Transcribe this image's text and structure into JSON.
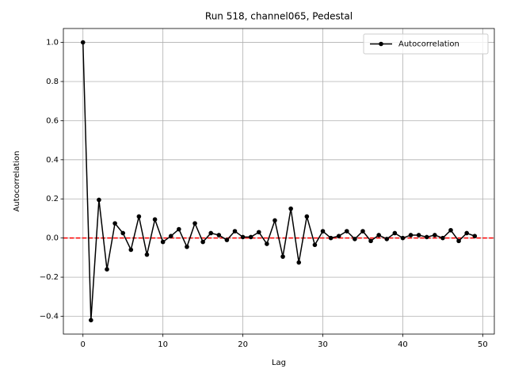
{
  "chart_data": {
    "type": "line",
    "title": "Run 518, channel065, Pedestal",
    "x_label": "Lag",
    "y_label": "Autocorrelation",
    "x": [
      0,
      1,
      2,
      3,
      4,
      5,
      6,
      7,
      8,
      9,
      10,
      11,
      12,
      13,
      14,
      15,
      16,
      17,
      18,
      19,
      20,
      21,
      22,
      23,
      24,
      25,
      26,
      27,
      28,
      29,
      30,
      31,
      32,
      33,
      34,
      35,
      36,
      37,
      38,
      39,
      40,
      41,
      42,
      43,
      44,
      45,
      46,
      47,
      48,
      49
    ],
    "series": [
      {
        "name": "Autocorrelation",
        "color": "#000000",
        "values": [
          1.0,
          -0.42,
          0.195,
          -0.16,
          0.075,
          0.025,
          -0.06,
          0.11,
          -0.085,
          0.095,
          -0.02,
          0.01,
          0.045,
          -0.045,
          0.075,
          -0.02,
          0.025,
          0.015,
          -0.01,
          0.035,
          0.005,
          0.005,
          0.03,
          -0.03,
          0.09,
          -0.095,
          0.15,
          -0.125,
          0.11,
          -0.035,
          0.035,
          0.0,
          0.01,
          0.035,
          -0.005,
          0.035,
          -0.015,
          0.015,
          -0.005,
          0.025,
          0.0,
          0.015,
          0.015,
          0.005,
          0.015,
          0.0,
          0.04,
          -0.015,
          0.025,
          0.01
        ]
      }
    ],
    "reference_line": {
      "value": 0,
      "color": "#ff0000"
    },
    "xlim": [
      -2.45,
      51.45
    ],
    "xticks": [
      0,
      10,
      20,
      30,
      40,
      50
    ],
    "ylim": [
      -0.491,
      1.071
    ],
    "yticks": [
      {
        "value": -0.4,
        "label": "−0.4"
      },
      {
        "value": -0.2,
        "label": "−0.2"
      },
      {
        "value": 0,
        "label": "0.0"
      },
      {
        "value": 0.2,
        "label": "0.2"
      },
      {
        "value": 0.4,
        "label": "0.4"
      },
      {
        "value": 0.6,
        "label": "0.6"
      },
      {
        "value": 0.8,
        "label": "0.8"
      },
      {
        "value": 1.0,
        "label": "1.0"
      }
    ],
    "grid": true,
    "legend": "upper right"
  }
}
